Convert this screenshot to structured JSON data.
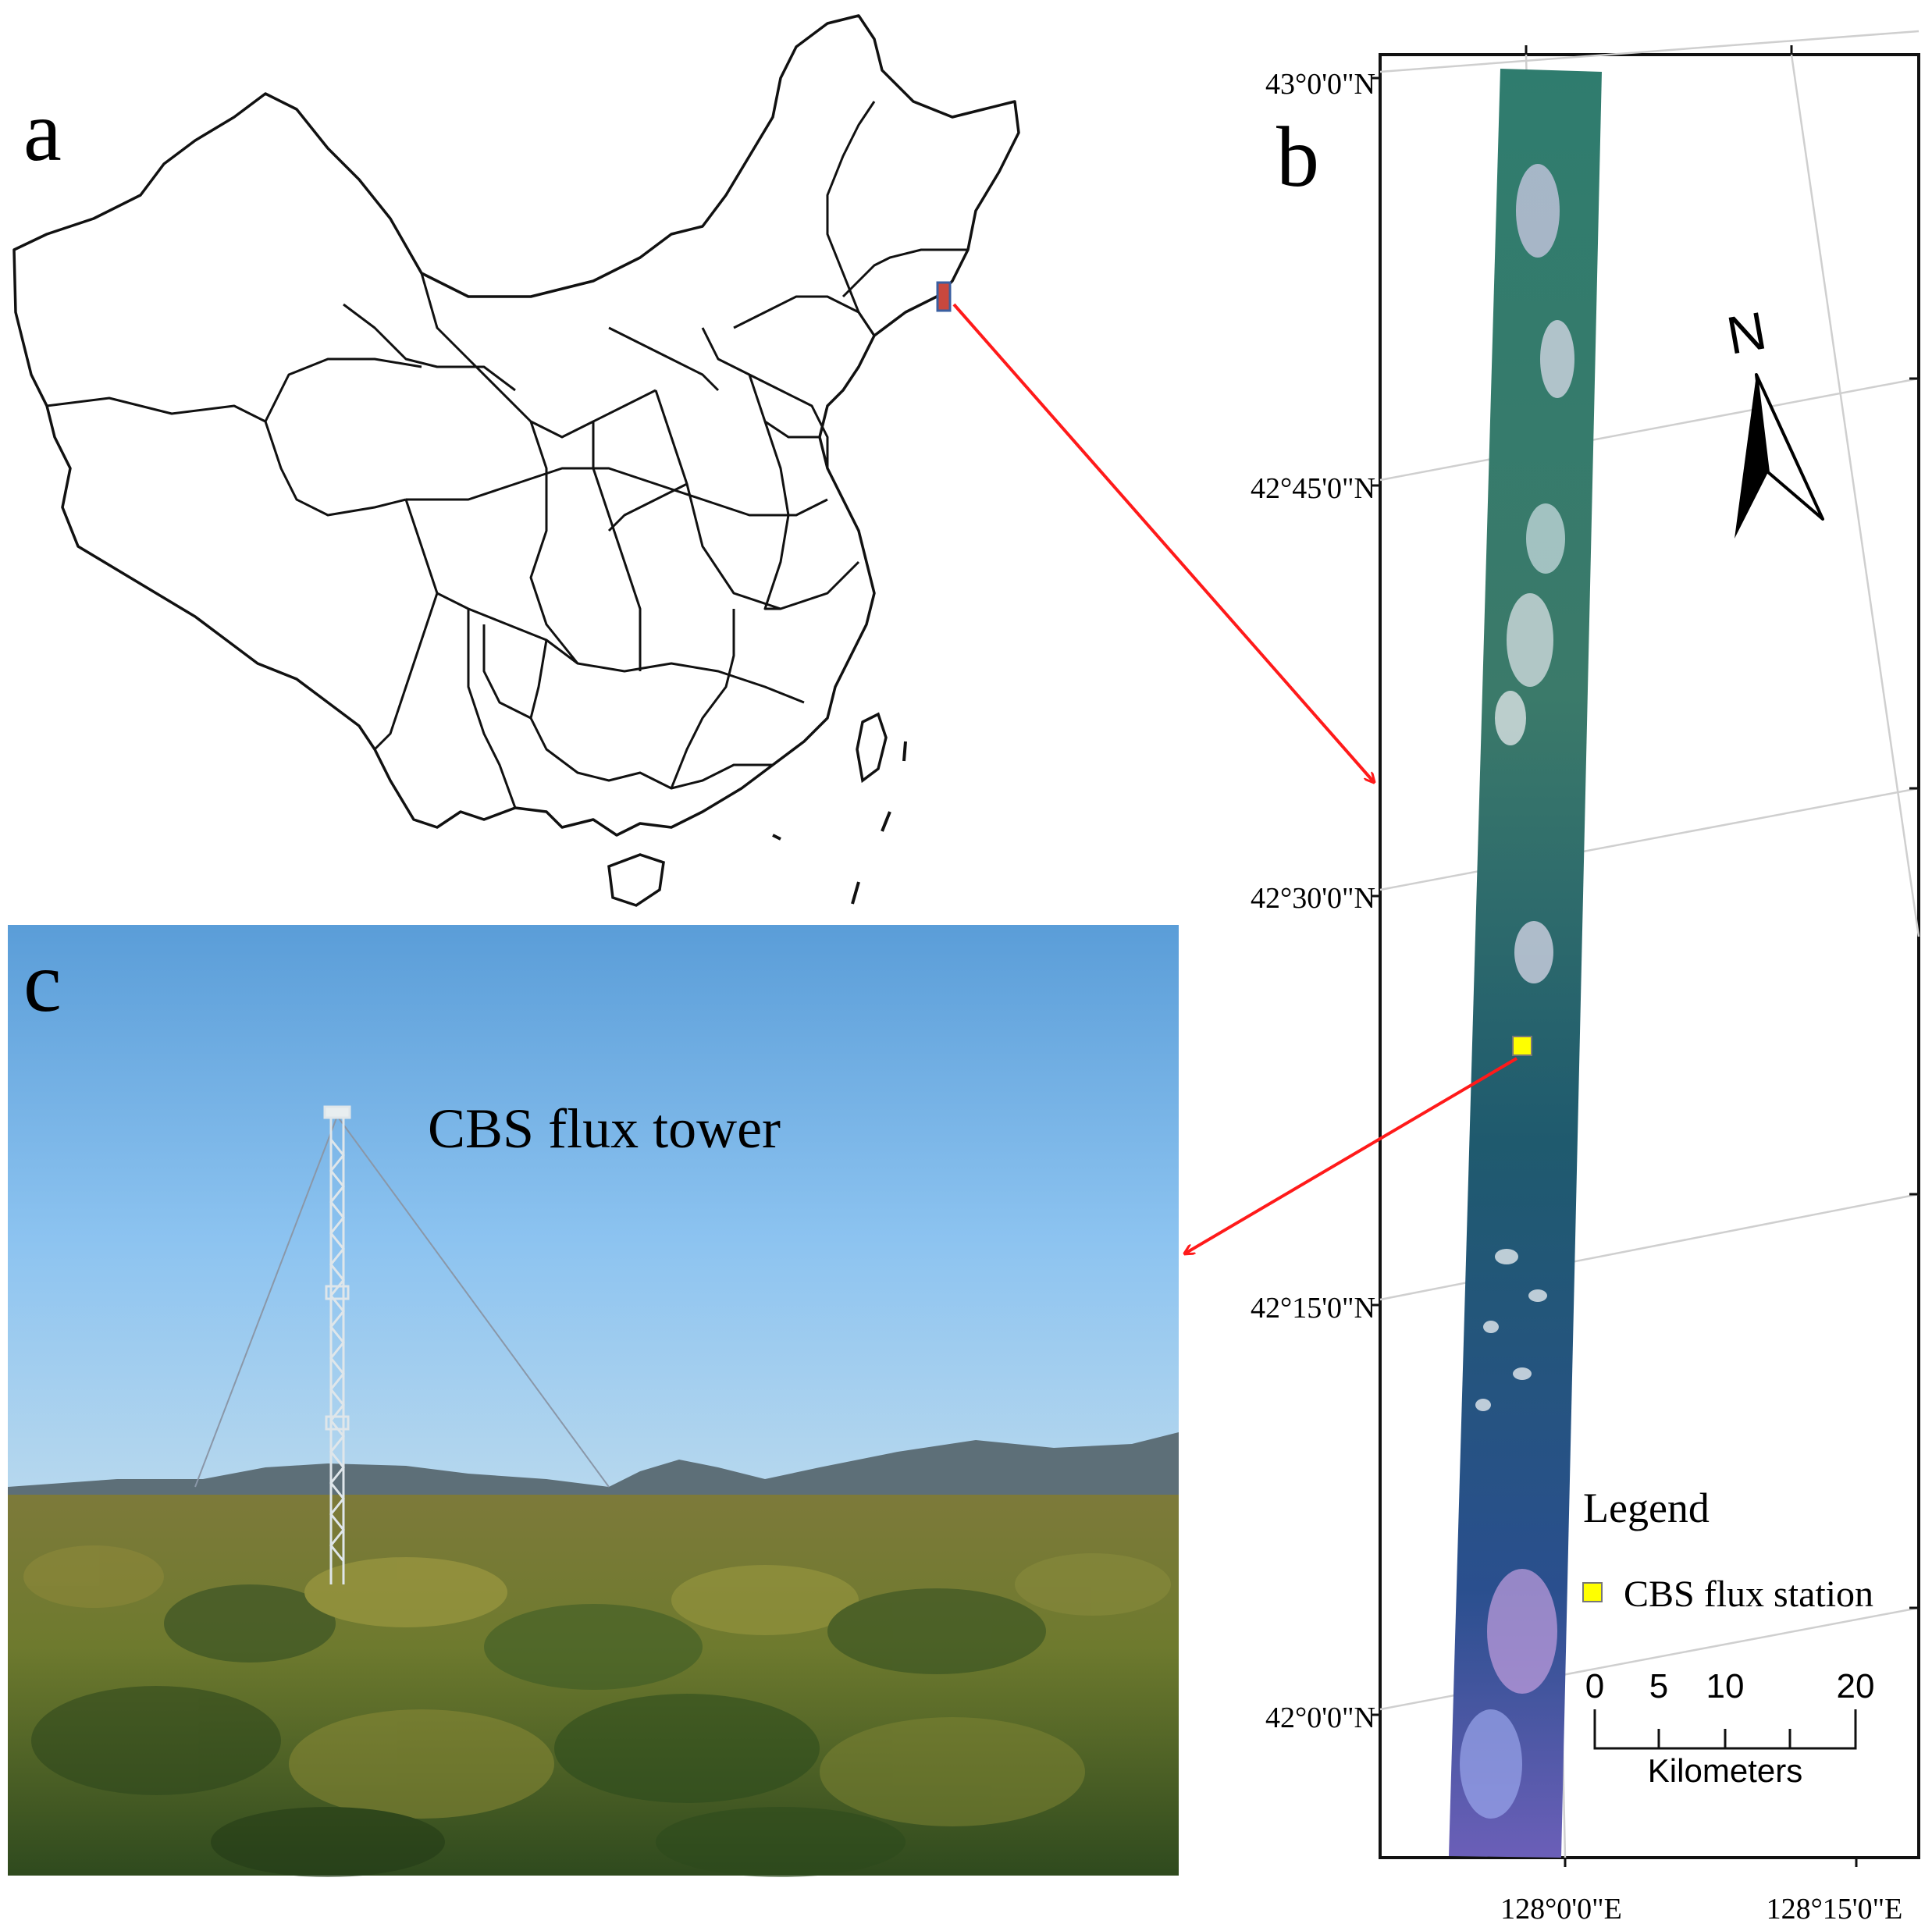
{
  "panels": {
    "a": {
      "letter": "a"
    },
    "b": {
      "letter": "b",
      "lat_labels": [
        "43°0'0\"N",
        "42°45'0\"N",
        "42°30'0\"N",
        "42°15'0\"N",
        "42°0'0\"N"
      ],
      "lon_labels": [
        "128°0'0\"E",
        "128°15'0\"E"
      ],
      "north_arrow_label": "N",
      "legend": {
        "title": "Legend",
        "items": [
          {
            "label": "CBS flux station",
            "color": "#ffff00"
          }
        ]
      },
      "scale_bar": {
        "ticks": [
          "0",
          "5",
          "10",
          "20"
        ],
        "unit": "Kilometers"
      }
    },
    "c": {
      "letter": "c",
      "caption": "CBS flux tower"
    }
  },
  "colors": {
    "arrow": "#ff1a1a",
    "station": "#ffff00",
    "study_area": "#c8483e"
  }
}
